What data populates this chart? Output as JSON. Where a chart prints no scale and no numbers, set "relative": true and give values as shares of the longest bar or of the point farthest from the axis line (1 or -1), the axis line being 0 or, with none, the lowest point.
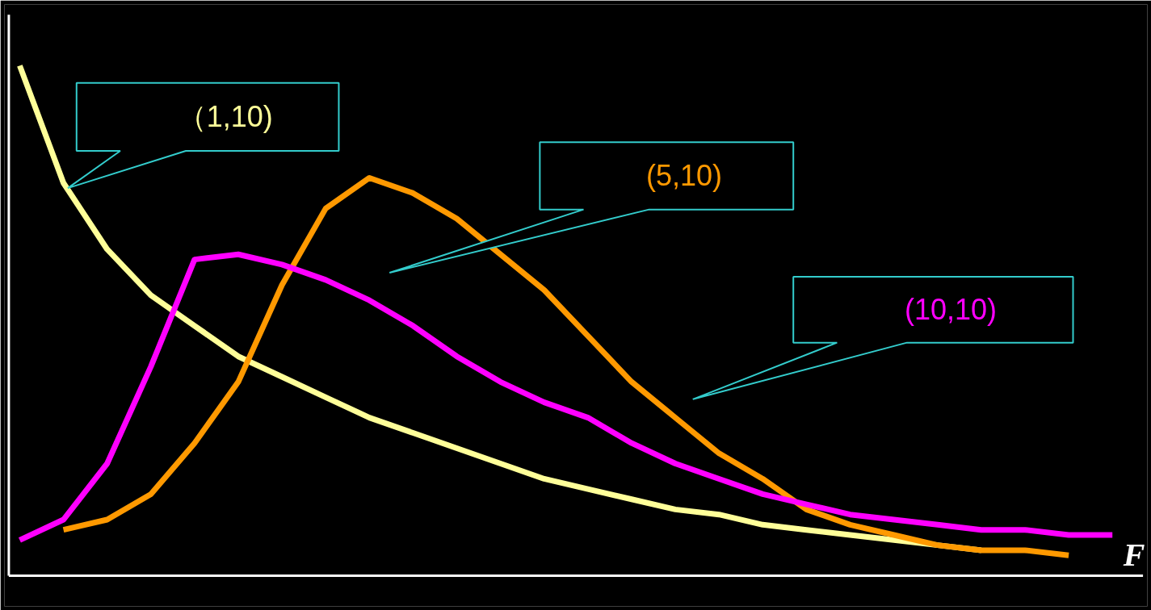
{
  "chart_data": {
    "type": "line",
    "relative": true,
    "xlabel": "F",
    "grid": false,
    "line_style": "solid",
    "marker": "none",
    "categories": [
      null,
      null,
      null,
      null,
      null,
      null,
      null,
      null,
      null,
      null,
      null,
      null,
      null,
      null,
      null,
      null,
      null,
      null,
      null,
      null,
      null,
      null,
      null,
      null,
      null,
      null
    ],
    "series": [
      {
        "name": "（1,10)",
        "color": "#ffff99",
        "values": [
          1.0,
          0.77,
          0.64,
          0.55,
          0.49,
          0.43,
          0.39,
          0.35,
          0.31,
          0.28,
          0.25,
          0.22,
          0.19,
          0.17,
          0.15,
          0.13,
          0.12,
          0.1,
          0.09,
          0.08,
          0.07,
          0.06,
          0.05,
          null,
          null,
          null
        ]
      },
      {
        "name": "(5,10)",
        "color": "#ff9900",
        "values": [
          null,
          0.09,
          0.11,
          0.16,
          0.26,
          0.38,
          0.57,
          0.72,
          0.78,
          0.75,
          0.7,
          0.63,
          0.56,
          0.47,
          0.38,
          0.31,
          0.24,
          0.19,
          0.13,
          0.1,
          0.08,
          0.06,
          0.05,
          0.05,
          0.04,
          null
        ]
      },
      {
        "name": "(10,10)",
        "color": "#ff00ff",
        "values": [
          0.07,
          0.11,
          0.22,
          0.41,
          0.62,
          0.63,
          0.61,
          0.58,
          0.54,
          0.49,
          0.43,
          0.38,
          0.34,
          0.31,
          0.26,
          0.22,
          0.19,
          0.16,
          0.14,
          0.12,
          0.11,
          0.1,
          0.09,
          0.09,
          0.08,
          0.08
        ]
      }
    ]
  }
}
